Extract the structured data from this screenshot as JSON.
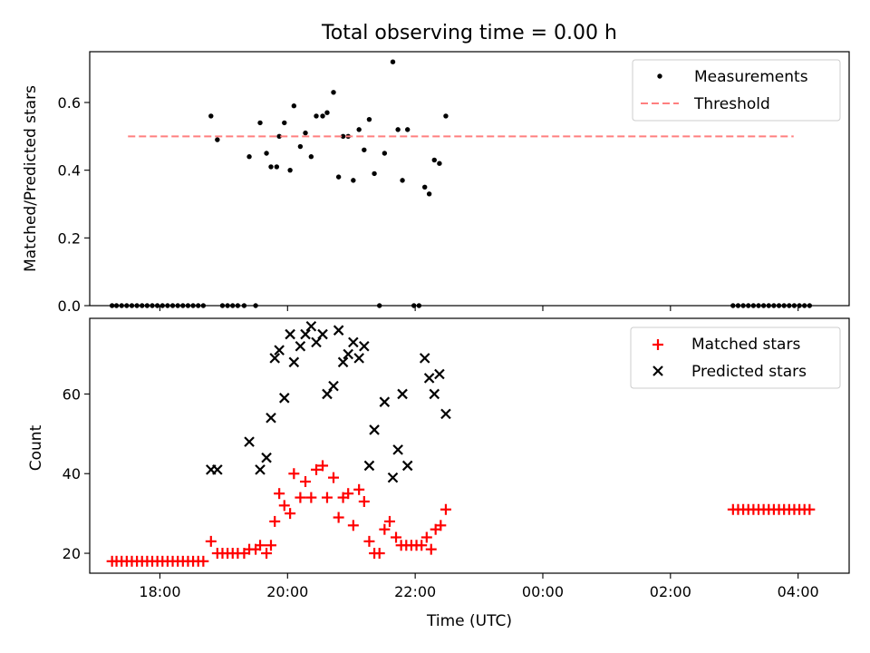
{
  "chart_data": [
    {
      "type": "scatter",
      "title": "Total observing time = 0.00 h",
      "xlabel": "",
      "ylabel": "Matched/Predicted stars",
      "x_unit": "hours since 00:00 UTC of the first day",
      "xlim": [
        16.9,
        28.8
      ],
      "ylim": [
        0,
        0.75
      ],
      "y_ticks": [
        0.0,
        0.2,
        0.4,
        0.6
      ],
      "y_tick_labels": [
        "0.0",
        "0.2",
        "0.4",
        "0.6"
      ],
      "x_ticks": [
        18,
        20,
        22,
        24,
        26,
        28
      ],
      "legend_location": "upper right",
      "legend": [
        "Measurements",
        "Threshold"
      ],
      "colors": {
        "measurements": "#000000",
        "threshold": "#ff7f7f"
      },
      "series": [
        {
          "name": "Measurements",
          "kind": "dot",
          "points": [
            [
              17.25,
              0
            ],
            [
              17.32,
              0
            ],
            [
              17.4,
              0
            ],
            [
              17.48,
              0
            ],
            [
              17.56,
              0
            ],
            [
              17.64,
              0
            ],
            [
              17.72,
              0
            ],
            [
              17.8,
              0
            ],
            [
              17.88,
              0
            ],
            [
              17.96,
              0
            ],
            [
              18.04,
              0
            ],
            [
              18.12,
              0
            ],
            [
              18.2,
              0
            ],
            [
              18.28,
              0
            ],
            [
              18.36,
              0
            ],
            [
              18.44,
              0
            ],
            [
              18.52,
              0
            ],
            [
              18.6,
              0
            ],
            [
              18.68,
              0
            ],
            [
              18.8,
              0.56
            ],
            [
              18.9,
              0.49
            ],
            [
              18.98,
              0
            ],
            [
              19.06,
              0
            ],
            [
              19.14,
              0
            ],
            [
              19.22,
              0
            ],
            [
              19.32,
              0
            ],
            [
              19.4,
              0.44
            ],
            [
              19.5,
              0
            ],
            [
              19.57,
              0.54
            ],
            [
              19.67,
              0.45
            ],
            [
              19.74,
              0.41
            ],
            [
              19.83,
              0.41
            ],
            [
              19.87,
              0.5
            ],
            [
              19.95,
              0.54
            ],
            [
              20.04,
              0.4
            ],
            [
              20.1,
              0.59
            ],
            [
              20.2,
              0.47
            ],
            [
              20.28,
              0.51
            ],
            [
              20.37,
              0.44
            ],
            [
              20.45,
              0.56
            ],
            [
              20.55,
              0.56
            ],
            [
              20.62,
              0.57
            ],
            [
              20.72,
              0.63
            ],
            [
              20.8,
              0.38
            ],
            [
              20.87,
              0.5
            ],
            [
              20.95,
              0.5
            ],
            [
              21.03,
              0.37
            ],
            [
              21.12,
              0.52
            ],
            [
              21.2,
              0.46
            ],
            [
              21.28,
              0.55
            ],
            [
              21.36,
              0.39
            ],
            [
              21.44,
              0
            ],
            [
              21.52,
              0.45
            ],
            [
              21.65,
              0.72
            ],
            [
              21.73,
              0.52
            ],
            [
              21.8,
              0.37
            ],
            [
              21.88,
              0.52
            ],
            [
              21.98,
              0
            ],
            [
              22.06,
              0
            ],
            [
              22.15,
              0.35
            ],
            [
              22.22,
              0.33
            ],
            [
              22.3,
              0.43
            ],
            [
              22.38,
              0.42
            ],
            [
              22.48,
              0.56
            ],
            [
              26.98,
              0
            ],
            [
              27.06,
              0
            ],
            [
              27.14,
              0
            ],
            [
              27.22,
              0
            ],
            [
              27.3,
              0
            ],
            [
              27.38,
              0
            ],
            [
              27.46,
              0
            ],
            [
              27.54,
              0
            ],
            [
              27.62,
              0
            ],
            [
              27.7,
              0
            ],
            [
              27.78,
              0
            ],
            [
              27.86,
              0
            ],
            [
              27.94,
              0
            ],
            [
              28.02,
              0
            ],
            [
              28.1,
              0
            ],
            [
              28.18,
              0
            ]
          ]
        },
        {
          "name": "Threshold",
          "kind": "dashed-line",
          "points": [
            [
              17.5,
              0.5
            ],
            [
              27.93,
              0.5
            ]
          ]
        }
      ]
    },
    {
      "type": "scatter",
      "title": "",
      "xlabel": "Time (UTC)",
      "ylabel": "Count",
      "x_unit": "hours since 00:00 UTC of the first day",
      "xlim": [
        16.9,
        28.8
      ],
      "ylim": [
        15,
        79
      ],
      "y_ticks": [
        20,
        40,
        60
      ],
      "y_tick_labels": [
        "20",
        "40",
        "60"
      ],
      "x_ticks": [
        18,
        20,
        22,
        24,
        26,
        28
      ],
      "x_tick_labels": [
        "18:00",
        "20:00",
        "22:00",
        "00:00",
        "02:00",
        "04:00"
      ],
      "legend_location": "upper right",
      "legend": [
        "Matched stars",
        "Predicted stars"
      ],
      "colors": {
        "matched": "#ff0000",
        "predicted": "#000000"
      },
      "series": [
        {
          "name": "Matched stars",
          "kind": "plus",
          "points": [
            [
              17.25,
              18
            ],
            [
              17.32,
              18
            ],
            [
              17.4,
              18
            ],
            [
              17.48,
              18
            ],
            [
              17.56,
              18
            ],
            [
              17.64,
              18
            ],
            [
              17.72,
              18
            ],
            [
              17.8,
              18
            ],
            [
              17.88,
              18
            ],
            [
              17.96,
              18
            ],
            [
              18.04,
              18
            ],
            [
              18.12,
              18
            ],
            [
              18.2,
              18
            ],
            [
              18.28,
              18
            ],
            [
              18.36,
              18
            ],
            [
              18.44,
              18
            ],
            [
              18.52,
              18
            ],
            [
              18.6,
              18
            ],
            [
              18.68,
              18
            ],
            [
              18.8,
              23
            ],
            [
              18.9,
              20
            ],
            [
              18.98,
              20
            ],
            [
              19.06,
              20
            ],
            [
              19.14,
              20
            ],
            [
              19.22,
              20
            ],
            [
              19.32,
              20
            ],
            [
              19.4,
              21
            ],
            [
              19.5,
              21
            ],
            [
              19.57,
              22
            ],
            [
              19.67,
              20
            ],
            [
              19.74,
              22
            ],
            [
              19.8,
              28
            ],
            [
              19.87,
              35
            ],
            [
              19.95,
              32
            ],
            [
              20.04,
              30
            ],
            [
              20.1,
              40
            ],
            [
              20.2,
              34
            ],
            [
              20.28,
              38
            ],
            [
              20.37,
              34
            ],
            [
              20.45,
              41
            ],
            [
              20.55,
              42
            ],
            [
              20.62,
              34
            ],
            [
              20.72,
              39
            ],
            [
              20.8,
              29
            ],
            [
              20.87,
              34
            ],
            [
              20.95,
              35
            ],
            [
              21.03,
              27
            ],
            [
              21.12,
              36
            ],
            [
              21.2,
              33
            ],
            [
              21.28,
              23
            ],
            [
              21.36,
              20
            ],
            [
              21.44,
              20
            ],
            [
              21.52,
              26
            ],
            [
              21.6,
              28
            ],
            [
              21.7,
              24
            ],
            [
              21.78,
              22
            ],
            [
              21.86,
              22
            ],
            [
              21.94,
              22
            ],
            [
              22.02,
              22
            ],
            [
              22.1,
              22
            ],
            [
              22.18,
              24
            ],
            [
              22.25,
              21
            ],
            [
              22.32,
              26
            ],
            [
              22.4,
              27
            ],
            [
              22.48,
              31
            ],
            [
              26.98,
              31
            ],
            [
              27.06,
              31
            ],
            [
              27.14,
              31
            ],
            [
              27.22,
              31
            ],
            [
              27.3,
              31
            ],
            [
              27.38,
              31
            ],
            [
              27.46,
              31
            ],
            [
              27.54,
              31
            ],
            [
              27.62,
              31
            ],
            [
              27.7,
              31
            ],
            [
              27.78,
              31
            ],
            [
              27.86,
              31
            ],
            [
              27.94,
              31
            ],
            [
              28.02,
              31
            ],
            [
              28.1,
              31
            ],
            [
              28.18,
              31
            ]
          ]
        },
        {
          "name": "Predicted stars",
          "kind": "x",
          "points": [
            [
              18.8,
              41
            ],
            [
              18.9,
              41
            ],
            [
              19.4,
              48
            ],
            [
              19.57,
              41
            ],
            [
              19.67,
              44
            ],
            [
              19.74,
              54
            ],
            [
              19.8,
              69
            ],
            [
              19.87,
              71
            ],
            [
              19.95,
              59
            ],
            [
              20.04,
              75
            ],
            [
              20.1,
              68
            ],
            [
              20.2,
              72
            ],
            [
              20.28,
              75
            ],
            [
              20.37,
              77
            ],
            [
              20.45,
              73
            ],
            [
              20.55,
              75
            ],
            [
              20.62,
              60
            ],
            [
              20.72,
              62
            ],
            [
              20.8,
              76
            ],
            [
              20.87,
              68
            ],
            [
              20.95,
              70
            ],
            [
              21.03,
              73
            ],
            [
              21.12,
              69
            ],
            [
              21.2,
              72
            ],
            [
              21.28,
              42
            ],
            [
              21.36,
              51
            ],
            [
              21.52,
              58
            ],
            [
              21.65,
              39
            ],
            [
              21.73,
              46
            ],
            [
              21.8,
              60
            ],
            [
              21.88,
              42
            ],
            [
              22.15,
              69
            ],
            [
              22.22,
              64
            ],
            [
              22.3,
              60
            ],
            [
              22.38,
              65
            ],
            [
              22.48,
              55
            ]
          ]
        }
      ]
    }
  ]
}
